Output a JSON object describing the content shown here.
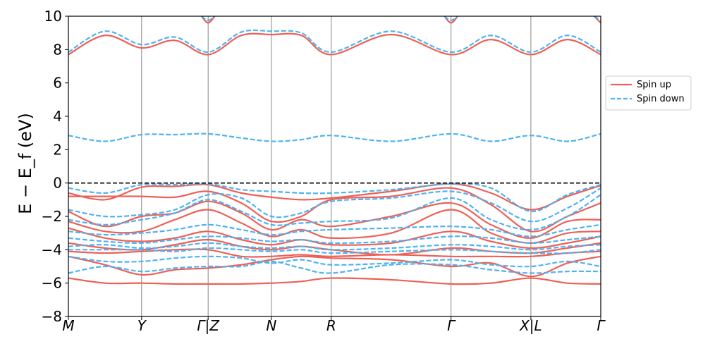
{
  "chart_data": {
    "type": "line",
    "xlabel": "",
    "ylabel": "E − E_f (eV)",
    "ylim": [
      -8,
      10
    ],
    "yticks": [
      -8,
      -6,
      -4,
      -2,
      0,
      2,
      4,
      6,
      8,
      10
    ],
    "xlim": [
      0,
      8
    ],
    "kpoints": [
      {
        "label": "M",
        "x": 0
      },
      {
        "label": "Y",
        "x": 1.1
      },
      {
        "label": "Γ|Z",
        "x": 2.1
      },
      {
        "label": "N",
        "x": 3.05
      },
      {
        "label": "R",
        "x": 3.95
      },
      {
        "label": "Γ",
        "x": 5.75
      },
      {
        "label": "X|L",
        "x": 6.95
      },
      {
        "label": "Γ",
        "x": 8
      }
    ],
    "fermi_level": 0,
    "legend": {
      "placement": "right",
      "entries": [
        "Spin up",
        "Spin down"
      ]
    },
    "colors": {
      "up": "#ee6055",
      "down": "#4db3f2",
      "fermi": "#000000",
      "vline": "#888888"
    },
    "series": [
      {
        "name": "Spin up",
        "style": "solid",
        "bands": [
          {
            "x": [
              0,
              0.55,
              1.1,
              1.6,
              2.1,
              2.6,
              3.05,
              3.5,
              3.95,
              4.85,
              5.75,
              6.35,
              6.95,
              7.5,
              8
            ],
            "y": [
              7.7,
              8.85,
              8.1,
              8.55,
              7.7,
              8.85,
              8.9,
              8.85,
              7.7,
              8.9,
              7.7,
              8.6,
              7.7,
              8.6,
              7.7
            ]
          },
          {
            "x": [
              2.0,
              2.1,
              2.2
            ],
            "y": [
              10.0,
              9.6,
              10.0
            ]
          },
          {
            "x": [
              5.65,
              5.75,
              5.85
            ],
            "y": [
              10.0,
              9.6,
              10.0
            ]
          },
          {
            "x": [
              7.9,
              8.0
            ],
            "y": [
              10.0,
              9.6
            ]
          },
          {
            "x": [
              0,
              0.55,
              1.1,
              1.6,
              2.1,
              2.6,
              3.05,
              3.5,
              3.95,
              4.85,
              5.75,
              6.35,
              6.95,
              7.5,
              8
            ],
            "y": [
              -0.6,
              -1.0,
              -0.25,
              -0.2,
              -0.1,
              -0.6,
              -0.85,
              -1.0,
              -0.9,
              -0.5,
              -0.05,
              -0.6,
              -1.6,
              -0.8,
              -0.15
            ]
          },
          {
            "x": [
              0,
              0.55,
              1.1,
              1.6,
              2.1,
              2.6,
              3.05,
              3.5,
              3.95,
              4.85,
              5.75,
              6.35,
              6.95,
              7.5,
              8
            ],
            "y": [
              -0.8,
              -0.8,
              -0.8,
              -0.85,
              -0.5,
              -1.2,
              -2.3,
              -2.0,
              -1.0,
              -0.8,
              -0.3,
              -1.3,
              -2.9,
              -2.0,
              -1.2
            ]
          },
          {
            "x": [
              0,
              0.55,
              1.1,
              1.6,
              2.1,
              2.6,
              3.05,
              3.5,
              3.95,
              4.85,
              5.75,
              6.35,
              6.95,
              7.5,
              8
            ],
            "y": [
              -1.7,
              -2.6,
              -2.0,
              -1.8,
              -1.1,
              -1.8,
              -2.8,
              -2.2,
              -2.6,
              -2.0,
              -1.2,
              -2.5,
              -3.3,
              -2.3,
              -2.2
            ]
          },
          {
            "x": [
              0,
              0.55,
              1.1,
              1.6,
              2.1,
              2.6,
              3.05,
              3.5,
              3.95,
              4.85,
              5.75,
              6.35,
              6.95,
              7.5,
              8
            ],
            "y": [
              -2.3,
              -2.9,
              -2.9,
              -2.2,
              -1.6,
              -2.4,
              -3.2,
              -2.8,
              -3.3,
              -3.0,
              -1.6,
              -3.0,
              -3.6,
              -3.0,
              -2.9
            ]
          },
          {
            "x": [
              0,
              0.55,
              1.1,
              1.6,
              2.1,
              2.6,
              3.05,
              3.5,
              3.95,
              4.85,
              5.75,
              6.35,
              6.95,
              7.5,
              8
            ],
            "y": [
              -2.7,
              -3.3,
              -3.5,
              -3.3,
              -2.9,
              -3.4,
              -3.7,
              -3.4,
              -3.7,
              -3.6,
              -2.9,
              -3.5,
              -3.9,
              -3.6,
              -3.2
            ]
          },
          {
            "x": [
              0,
              0.55,
              1.1,
              1.6,
              2.1,
              2.6,
              3.05,
              3.5,
              3.95,
              4.85,
              5.75,
              6.35,
              6.95,
              7.5,
              8
            ],
            "y": [
              -3.6,
              -3.9,
              -4.0,
              -3.7,
              -3.4,
              -3.8,
              -4.0,
              -3.8,
              -4.0,
              -4.3,
              -3.9,
              -4.1,
              -4.2,
              -3.9,
              -3.6
            ]
          },
          {
            "x": [
              0,
              0.55,
              1.1,
              1.6,
              2.1,
              2.6,
              3.05,
              3.5,
              3.95,
              4.85,
              5.75,
              6.35,
              6.95,
              7.5,
              8
            ],
            "y": [
              -4.1,
              -4.2,
              -4.1,
              -4.0,
              -4.0,
              -4.4,
              -4.4,
              -4.3,
              -4.4,
              -4.3,
              -4.4,
              -4.4,
              -4.4,
              -4.2,
              -4.1
            ]
          },
          {
            "x": [
              0,
              0.55,
              1.1,
              1.6,
              2.1,
              2.6,
              3.05,
              3.5,
              3.95,
              4.85,
              5.75,
              6.35,
              6.95,
              7.5,
              8
            ],
            "y": [
              -4.4,
              -4.9,
              -5.5,
              -5.2,
              -5.1,
              -4.9,
              -4.6,
              -4.4,
              -4.5,
              -4.6,
              -5.0,
              -4.8,
              -5.6,
              -4.8,
              -4.4
            ]
          },
          {
            "x": [
              0,
              0.55,
              1.1,
              1.6,
              2.1,
              2.6,
              3.05,
              3.5,
              3.95,
              4.85,
              5.75,
              6.35,
              6.95,
              7.5,
              8
            ],
            "y": [
              -5.7,
              -6.0,
              -6.0,
              -6.05,
              -6.05,
              -6.05,
              -6.0,
              -5.9,
              -5.7,
              -5.8,
              -6.05,
              -6.0,
              -5.7,
              -6.0,
              -6.05
            ]
          }
        ]
      },
      {
        "name": "Spin down",
        "style": "dashed",
        "bands": [
          {
            "x": [
              0,
              0.55,
              1.1,
              1.6,
              2.1,
              2.6,
              3.05,
              3.5,
              3.95,
              4.85,
              5.75,
              6.35,
              6.95,
              7.5,
              8
            ],
            "y": [
              7.85,
              9.1,
              8.3,
              8.75,
              7.85,
              9.05,
              9.1,
              9.0,
              7.85,
              9.1,
              7.85,
              8.85,
              7.85,
              8.85,
              7.85
            ]
          },
          {
            "x": [
              2.0,
              2.1,
              2.2
            ],
            "y": [
              10.0,
              9.75,
              10.0
            ]
          },
          {
            "x": [
              5.65,
              5.75,
              5.85
            ],
            "y": [
              10.0,
              9.75,
              10.0
            ]
          },
          {
            "x": [
              7.9,
              8.0
            ],
            "y": [
              10.0,
              9.75
            ]
          },
          {
            "x": [
              0,
              0.55,
              1.1,
              1.6,
              2.1,
              2.6,
              3.05,
              3.5,
              3.95,
              4.85,
              5.75,
              6.35,
              6.95,
              7.5,
              8
            ],
            "y": [
              2.85,
              2.5,
              2.9,
              2.9,
              2.95,
              2.7,
              2.5,
              2.6,
              2.85,
              2.5,
              2.95,
              2.5,
              2.85,
              2.5,
              2.95
            ]
          },
          {
            "x": [
              0,
              0.55,
              1.1,
              1.6,
              2.1,
              2.6,
              3.05,
              3.5,
              3.95,
              4.85,
              5.75,
              6.35,
              6.95,
              7.5,
              8
            ],
            "y": [
              -0.3,
              -0.6,
              -0.1,
              -0.1,
              -0.05,
              -0.4,
              -0.5,
              -0.6,
              -0.6,
              -0.4,
              -0.05,
              -0.3,
              -1.7,
              -0.7,
              -0.1
            ]
          },
          {
            "x": [
              0,
              0.55,
              1.1,
              1.6,
              2.1,
              2.6,
              3.05,
              3.5,
              3.95,
              4.85,
              5.75,
              6.35,
              6.95,
              7.5,
              8
            ],
            "y": [
              -1.6,
              -2.0,
              -1.9,
              -1.6,
              -0.7,
              -0.9,
              -2.0,
              -1.8,
              -1.1,
              -0.9,
              -0.5,
              -1.2,
              -2.3,
              -1.5,
              -0.3
            ]
          },
          {
            "x": [
              0,
              0.55,
              1.1,
              1.6,
              2.1,
              2.6,
              3.05,
              3.5,
              3.95,
              4.85,
              5.75,
              6.35,
              6.95,
              7.5,
              8
            ],
            "y": [
              -2.2,
              -2.5,
              -2.2,
              -1.8,
              -1.0,
              -1.7,
              -2.5,
              -2.4,
              -2.3,
              -2.1,
              -0.9,
              -2.2,
              -2.8,
              -2.0,
              -0.7
            ]
          },
          {
            "x": [
              0,
              0.55,
              1.1,
              1.6,
              2.1,
              2.6,
              3.05,
              3.5,
              3.95,
              4.85,
              5.75,
              6.35,
              6.95,
              7.5,
              8
            ],
            "y": [
              -2.9,
              -3.1,
              -3.0,
              -2.8,
              -2.5,
              -2.8,
              -3.1,
              -2.9,
              -2.8,
              -2.7,
              -2.6,
              -2.8,
              -3.2,
              -2.8,
              -2.5
            ]
          },
          {
            "x": [
              0,
              0.55,
              1.1,
              1.6,
              2.1,
              2.6,
              3.05,
              3.5,
              3.95,
              4.85,
              5.75,
              6.35,
              6.95,
              7.5,
              8
            ],
            "y": [
              -3.3,
              -3.5,
              -3.6,
              -3.4,
              -3.2,
              -3.3,
              -3.5,
              -3.4,
              -3.6,
              -3.5,
              -3.2,
              -3.3,
              -3.6,
              -3.4,
              -3.2
            ]
          },
          {
            "x": [
              0,
              0.55,
              1.1,
              1.6,
              2.1,
              2.6,
              3.05,
              3.5,
              3.95,
              4.85,
              5.75,
              6.35,
              6.95,
              7.5,
              8
            ],
            "y": [
              -3.8,
              -3.7,
              -3.9,
              -3.8,
              -3.6,
              -3.8,
              -3.9,
              -3.8,
              -4.0,
              -3.9,
              -3.7,
              -3.8,
              -4.0,
              -3.8,
              -3.7
            ]
          },
          {
            "x": [
              0,
              0.55,
              1.1,
              1.6,
              2.1,
              2.6,
              3.05,
              3.5,
              3.95,
              4.85,
              5.75,
              6.35,
              6.95,
              7.5,
              8
            ],
            "y": [
              -4.0,
              -4.0,
              -4.0,
              -4.1,
              -3.9,
              -4.0,
              -4.1,
              -4.0,
              -4.2,
              -4.1,
              -4.0,
              -4.1,
              -4.2,
              -4.2,
              -4.0
            ]
          },
          {
            "x": [
              0,
              0.55,
              1.1,
              1.6,
              2.1,
              2.6,
              3.05,
              3.5,
              3.95,
              4.85,
              5.75,
              6.35,
              6.95,
              7.5,
              8
            ],
            "y": [
              -4.4,
              -4.7,
              -4.7,
              -4.5,
              -4.4,
              -4.5,
              -4.8,
              -4.6,
              -4.9,
              -4.8,
              -4.6,
              -4.9,
              -5.0,
              -4.7,
              -5.0
            ]
          },
          {
            "x": [
              0,
              0.55,
              1.1,
              1.6,
              2.1,
              2.6,
              3.05,
              3.5,
              3.95,
              4.85,
              5.75,
              6.35,
              6.95,
              7.5,
              8
            ],
            "y": [
              -5.4,
              -5.0,
              -5.3,
              -5.1,
              -5.0,
              -5.0,
              -4.7,
              -5.1,
              -5.4,
              -4.9,
              -4.9,
              -5.2,
              -5.4,
              -5.3,
              -5.3
            ]
          }
        ]
      }
    ]
  }
}
